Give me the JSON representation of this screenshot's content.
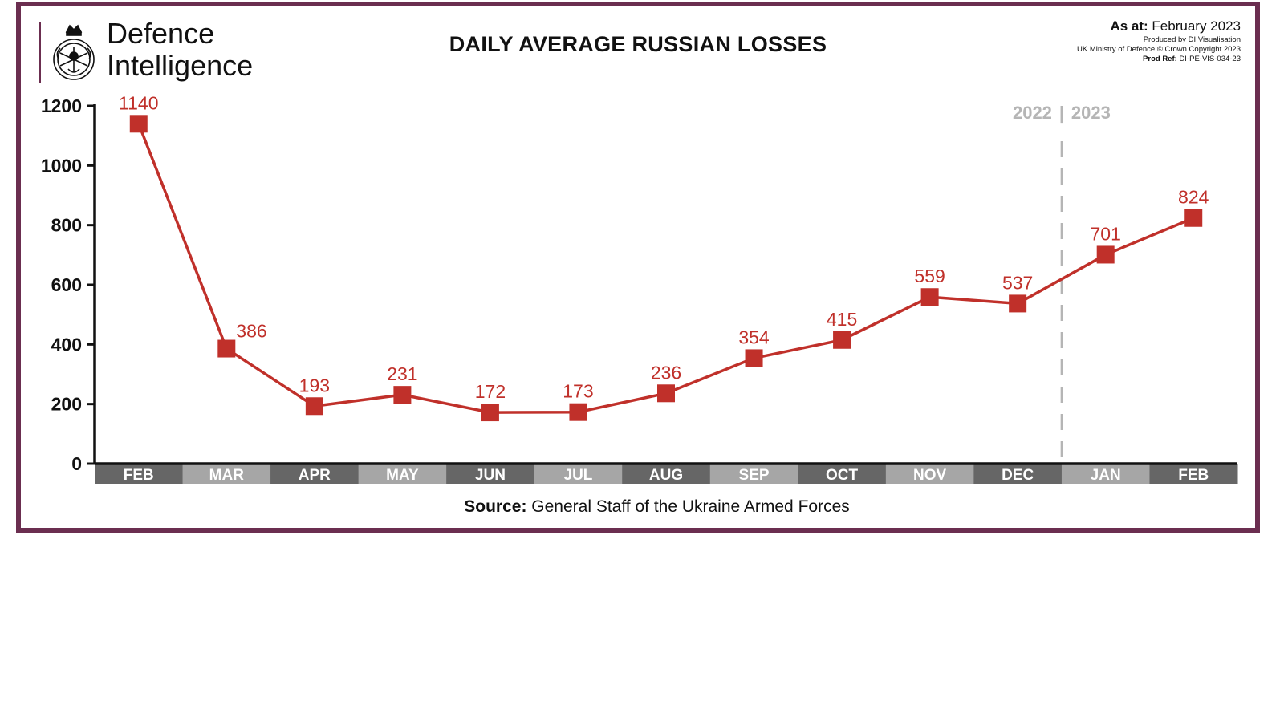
{
  "header": {
    "brand_line1": "Defence",
    "brand_line2": "Intelligence",
    "title": "DAILY AVERAGE RUSSIAN LOSSES",
    "as_at_label": "As at:",
    "as_at_value": "February 2023",
    "produced_by": "Produced by DI Visualisation",
    "copyright": "UK Ministry of Defence © Crown Copyright 2023",
    "prod_ref_label": "Prod Ref:",
    "prod_ref_value": "DI-PE-VIS-034-23"
  },
  "footer": {
    "source_label": "Source:",
    "source_value": "General Staff of the Ukraine Armed Forces"
  },
  "colors": {
    "frame": "#6b2e50",
    "series": "#c0302a",
    "month_dark": "#666666",
    "month_light": "#a6a6a6",
    "divider": "#b5b5b5"
  },
  "chart_data": {
    "type": "line",
    "title": "DAILY AVERAGE RUSSIAN LOSSES",
    "categories": [
      "FEB",
      "MAR",
      "APR",
      "MAY",
      "JUN",
      "JUL",
      "AUG",
      "SEP",
      "OCT",
      "NOV",
      "DEC",
      "JAN",
      "FEB"
    ],
    "values": [
      1140,
      386,
      193,
      231,
      172,
      173,
      236,
      354,
      415,
      559,
      537,
      701,
      824
    ],
    "yticks": [
      0,
      200,
      400,
      600,
      800,
      1000,
      1200
    ],
    "ylim": [
      0,
      1200
    ],
    "grid": false,
    "year_divider": {
      "label_left": "2022",
      "label_right": "2023",
      "separator": "|",
      "after_category_index": 10
    }
  }
}
